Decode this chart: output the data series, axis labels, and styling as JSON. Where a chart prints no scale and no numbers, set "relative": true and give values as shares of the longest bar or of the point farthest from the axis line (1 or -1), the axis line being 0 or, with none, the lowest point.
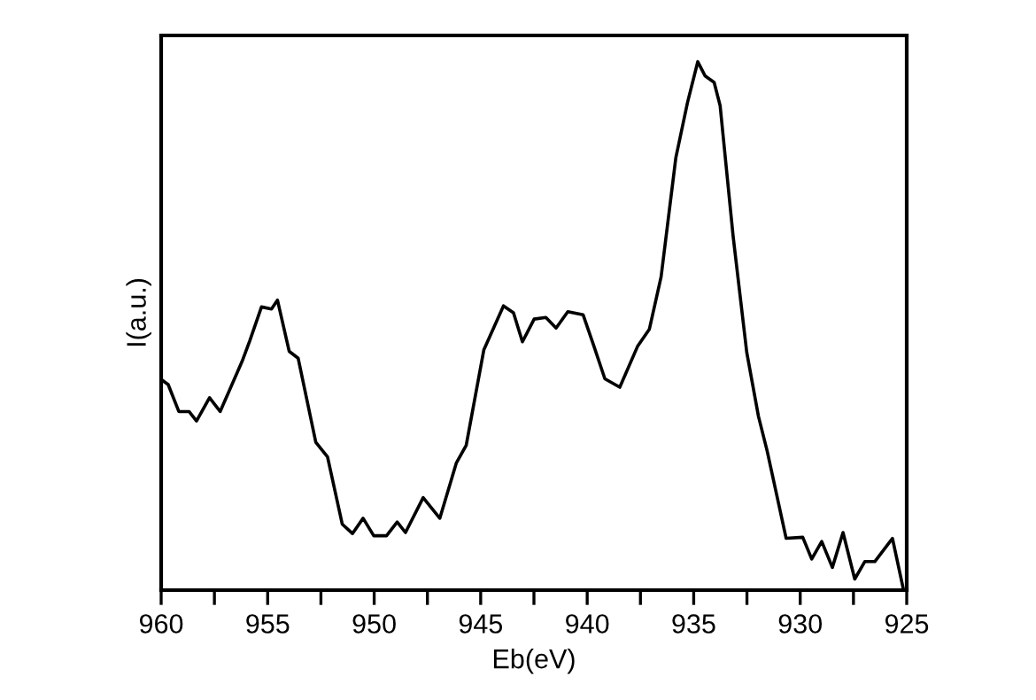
{
  "chart_data": {
    "type": "line",
    "xlabel": "Eb(eV)",
    "ylabel": "I(a.u.)",
    "relative": true,
    "xlim": [
      960,
      925
    ],
    "xticks": [
      960,
      {
        "value": 957.5,
        "label": null
      },
      955,
      {
        "value": 952.5,
        "label": null
      },
      950,
      {
        "value": 947.5,
        "label": null
      },
      945,
      {
        "value": 942.5,
        "label": null
      },
      940,
      {
        "value": 937.5,
        "label": null
      },
      935,
      {
        "value": 932.5,
        "label": null
      },
      930,
      {
        "value": 927.5,
        "label": null
      },
      925
    ],
    "tick_labels": "x",
    "grid": false,
    "legend": false,
    "marker": "none",
    "line_style": "solid",
    "series": [
      {
        "color": "#000000",
        "x": [
          959.94,
          959.67,
          959.17,
          958.69,
          958.34,
          957.73,
          957.23,
          956.2,
          955.84,
          955.29,
          954.82,
          954.54,
          953.99,
          953.57,
          952.74,
          952.19,
          951.5,
          951.02,
          950.52,
          950.02,
          949.42,
          948.92,
          948.53,
          947.7,
          946.92,
          946.14,
          945.68,
          944.85,
          943.93,
          943.46,
          943.04,
          942.49,
          941.94,
          941.46,
          940.91,
          940.19,
          939.72,
          939.17,
          938.47,
          937.64,
          937.08,
          936.53,
          935.84,
          935.29,
          934.81,
          934.46,
          934.04,
          933.76,
          933.15,
          932.51,
          931.96,
          931.55,
          930.66,
          929.88,
          929.46,
          928.99,
          928.49,
          927.99,
          927.44,
          926.97,
          926.5,
          925.67,
          925.17
        ],
        "values": [
          0.397,
          0.389,
          0.338,
          0.338,
          0.32,
          0.364,
          0.338,
          0.433,
          0.472,
          0.536,
          0.532,
          0.549,
          0.452,
          0.439,
          0.28,
          0.252,
          0.125,
          0.107,
          0.136,
          0.103,
          0.103,
          0.129,
          0.109,
          0.175,
          0.136,
          0.241,
          0.274,
          0.455,
          0.538,
          0.525,
          0.47,
          0.513,
          0.516,
          0.496,
          0.527,
          0.521,
          0.466,
          0.4,
          0.384,
          0.461,
          0.494,
          0.593,
          0.818,
          0.923,
          1,
          0.973,
          0.961,
          0.917,
          0.67,
          0.45,
          0.329,
          0.263,
          0.098,
          0.1,
          0.059,
          0.092,
          0.043,
          0.109,
          0.021,
          0.054,
          0.054,
          0.098,
          0.004
        ]
      }
    ]
  }
}
